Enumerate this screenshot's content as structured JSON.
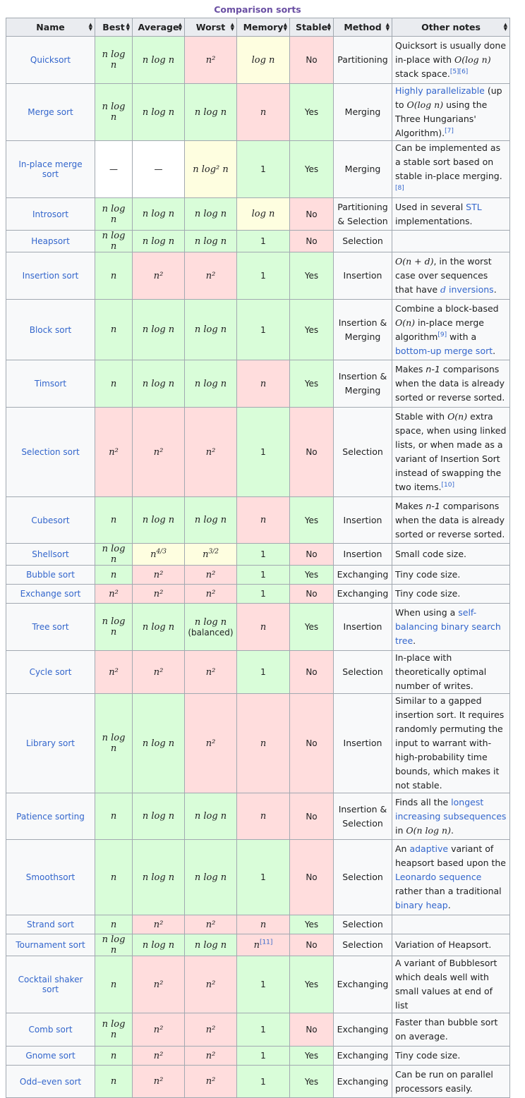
{
  "caption": "Comparison sorts",
  "headers": [
    "Name",
    "Best",
    "Average",
    "Worst",
    "Memory",
    "Stable",
    "Method",
    "Other notes"
  ],
  "colors": {
    "green": "#d9fdd9",
    "red": "#ffdddd",
    "yellow": "#fefee0",
    "header": "#eaecf0",
    "link": "#3366cc",
    "caption": "#6a4fa3"
  },
  "rows": [
    {
      "name": "Quicksort",
      "best": "n log n",
      "average": "n log n",
      "worst": "n²",
      "memory": "log n",
      "stable": "No",
      "method": "Partitioning",
      "notes": [
        {
          "t": "Quicksort is usually done in-place with "
        },
        {
          "t": "O(log n)",
          "m": 1
        },
        {
          "t": " stack space."
        },
        {
          "t": "[5][6]",
          "ref": 1
        }
      ]
    },
    {
      "name": "Merge sort",
      "best": "n log n",
      "average": "n log n",
      "worst": "n log n",
      "memory": "n",
      "stable": "Yes",
      "method": "Merging",
      "notes": [
        {
          "t": "Highly parallelizable",
          "l": 1
        },
        {
          "t": " (up to "
        },
        {
          "t": "O(log n)",
          "m": 1
        },
        {
          "t": " using the Three Hungarians' Algorithm)."
        },
        {
          "t": "[7]",
          "ref": 1
        }
      ]
    },
    {
      "name": "In-place merge sort",
      "best": "—",
      "average": "—",
      "worst": "n log² n",
      "memory": "1",
      "stable": "Yes",
      "method": "Merging",
      "notes": [
        {
          "t": "Can be implemented as a stable sort based on stable in-place merging."
        },
        {
          "t": "[8]",
          "ref": 1
        }
      ]
    },
    {
      "name": "Introsort",
      "best": "n log n",
      "average": "n log n",
      "worst": "n log n",
      "memory": "log n",
      "stable": "No",
      "method": "Partitioning & Selection",
      "notes": [
        {
          "t": "Used in several "
        },
        {
          "t": "STL",
          "l": 1
        },
        {
          "t": " implementations."
        }
      ]
    },
    {
      "name": "Heapsort",
      "best": "n log n",
      "average": "n log n",
      "worst": "n log n",
      "memory": "1",
      "stable": "No",
      "method": "Selection",
      "notes": []
    },
    {
      "name": "Insertion sort",
      "best": "n",
      "average": "n²",
      "worst": "n²",
      "memory": "1",
      "stable": "Yes",
      "method": "Insertion",
      "notes": [
        {
          "t": "O(n + d)",
          "m": 1
        },
        {
          "t": ", in the worst case over sequences that have "
        },
        {
          "t": "d",
          "m": 1,
          "l": 1
        },
        {
          "t": " inversions",
          "l": 1
        },
        {
          "t": "."
        }
      ]
    },
    {
      "name": "Block sort",
      "best": "n",
      "average": "n log n",
      "worst": "n log n",
      "memory": "1",
      "stable": "Yes",
      "method": "Insertion & Merging",
      "notes": [
        {
          "t": "Combine a block-based "
        },
        {
          "t": "O(n)",
          "m": 1
        },
        {
          "t": " in-place merge algorithm"
        },
        {
          "t": "[9]",
          "ref": 1
        },
        {
          "t": " with a "
        },
        {
          "t": "bottom-up merge sort",
          "l": 1
        },
        {
          "t": "."
        }
      ]
    },
    {
      "name": "Timsort",
      "best": "n",
      "average": "n log n",
      "worst": "n log n",
      "memory": "n",
      "stable": "Yes",
      "method": "Insertion & Merging",
      "notes": [
        {
          "t": "Makes "
        },
        {
          "t": "n-1",
          "i": 1
        },
        {
          "t": " comparisons when the data is already sorted or reverse sorted."
        }
      ]
    },
    {
      "name": "Selection sort",
      "best": "n²",
      "average": "n²",
      "worst": "n²",
      "memory": "1",
      "stable": "No",
      "method": "Selection",
      "notes": [
        {
          "t": "Stable with "
        },
        {
          "t": "O(n)",
          "m": 1
        },
        {
          "t": " extra space, when using linked lists, or when made as a variant of Insertion Sort instead of swapping the two items."
        },
        {
          "t": "[10]",
          "ref": 1
        }
      ]
    },
    {
      "name": "Cubesort",
      "best": "n",
      "average": "n log n",
      "worst": "n log n",
      "memory": "n",
      "stable": "Yes",
      "method": "Insertion",
      "notes": [
        {
          "t": "Makes "
        },
        {
          "t": "n-1",
          "i": 1
        },
        {
          "t": " comparisons when the data is already sorted or reverse sorted."
        }
      ]
    },
    {
      "name": "Shellsort",
      "best": "n log n",
      "average": "n^4/3",
      "worst": "n^3/2",
      "memory": "1",
      "stable": "No",
      "method": "Insertion",
      "notes": [
        {
          "t": "Small code size."
        }
      ]
    },
    {
      "name": "Bubble sort",
      "best": "n",
      "average": "n²",
      "worst": "n²",
      "memory": "1",
      "stable": "Yes",
      "method": "Exchanging",
      "notes": [
        {
          "t": "Tiny code size."
        }
      ]
    },
    {
      "name": "Exchange sort",
      "best": "n²",
      "average": "n²",
      "worst": "n²",
      "memory": "1",
      "stable": "No",
      "method": "Exchanging",
      "notes": [
        {
          "t": "Tiny code size."
        }
      ]
    },
    {
      "name": "Tree sort",
      "best": "n log n",
      "average": "n log n",
      "worst": "n log n",
      "worst_note": "(balanced)",
      "memory": "n",
      "stable": "Yes",
      "method": "Insertion",
      "notes": [
        {
          "t": "When using a "
        },
        {
          "t": "self-balancing binary search tree",
          "l": 1
        },
        {
          "t": "."
        }
      ]
    },
    {
      "name": "Cycle sort",
      "best": "n²",
      "average": "n²",
      "worst": "n²",
      "memory": "1",
      "stable": "No",
      "method": "Selection",
      "notes": [
        {
          "t": "In-place with theoretically optimal number of writes."
        }
      ]
    },
    {
      "name": "Library sort",
      "best": "n log n",
      "average": "n log n",
      "worst": "n²",
      "memory": "n",
      "stable": "No",
      "method": "Insertion",
      "notes": [
        {
          "t": "Similar to a gapped insertion sort. It requires randomly permuting the input to warrant with-high-probability time bounds, which makes it not stable."
        }
      ]
    },
    {
      "name": "Patience sorting",
      "best": "n",
      "average": "n log n",
      "worst": "n log n",
      "memory": "n",
      "stable": "No",
      "method": "Insertion & Selection",
      "notes": [
        {
          "t": "Finds all the "
        },
        {
          "t": "longest increasing subsequences",
          "l": 1
        },
        {
          "t": " in "
        },
        {
          "t": "O(n log n)",
          "m": 1
        },
        {
          "t": "."
        }
      ]
    },
    {
      "name": "Smoothsort",
      "best": "n",
      "average": "n log n",
      "worst": "n log n",
      "memory": "1",
      "stable": "No",
      "method": "Selection",
      "notes": [
        {
          "t": "An "
        },
        {
          "t": "adaptive",
          "l": 1
        },
        {
          "t": " variant of heapsort based upon the "
        },
        {
          "t": "Leonardo sequence",
          "l": 1
        },
        {
          "t": " rather than a traditional "
        },
        {
          "t": "binary heap",
          "l": 1
        },
        {
          "t": "."
        }
      ]
    },
    {
      "name": "Strand sort",
      "best": "n",
      "average": "n²",
      "worst": "n²",
      "memory": "n",
      "stable": "Yes",
      "method": "Selection",
      "notes": []
    },
    {
      "name": "Tournament sort",
      "best": "n log n",
      "average": "n log n",
      "worst": "n log n",
      "memory": "n",
      "memory_ref": "[11]",
      "stable": "No",
      "method": "Selection",
      "notes": [
        {
          "t": "Variation of Heapsort."
        }
      ]
    },
    {
      "name": "Cocktail shaker sort",
      "best": "n",
      "average": "n²",
      "worst": "n²",
      "memory": "1",
      "stable": "Yes",
      "method": "Exchanging",
      "notes": [
        {
          "t": "A variant of Bubblesort which deals well with small values at end of list"
        }
      ]
    },
    {
      "name": "Comb sort",
      "best": "n log n",
      "average": "n²",
      "worst": "n²",
      "memory": "1",
      "stable": "No",
      "method": "Exchanging",
      "notes": [
        {
          "t": "Faster than bubble sort on average."
        }
      ]
    },
    {
      "name": "Gnome sort",
      "best": "n",
      "average": "n²",
      "worst": "n²",
      "memory": "1",
      "stable": "Yes",
      "method": "Exchanging",
      "notes": [
        {
          "t": "Tiny code size."
        }
      ]
    },
    {
      "name": "Odd–even sort",
      "best": "n",
      "average": "n²",
      "worst": "n²",
      "memory": "1",
      "stable": "Yes",
      "method": "Exchanging",
      "notes": [
        {
          "t": "Can be run on parallel processors easily."
        }
      ]
    }
  ]
}
